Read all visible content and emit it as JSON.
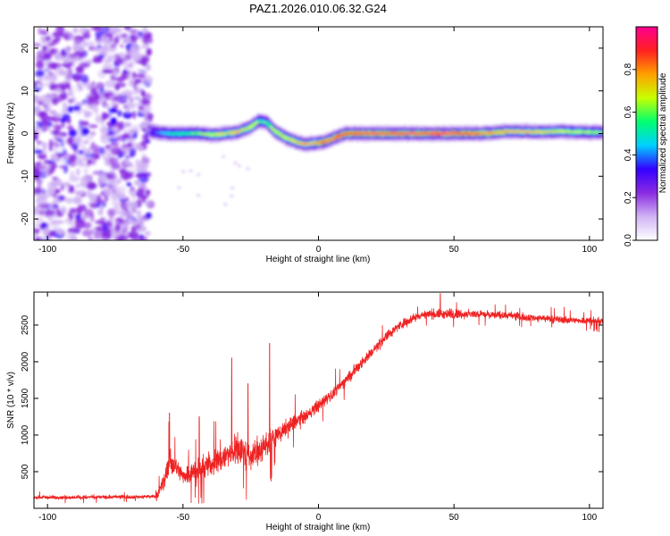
{
  "title": "PAZ1.2026.010.06.32.G24",
  "chart_data": [
    {
      "type": "heatmap",
      "xlabel": "Height of straight line (km)",
      "ylabel": "Frequency (Hz)",
      "xlim": [
        -105,
        105
      ],
      "ylim": [
        -25,
        25
      ],
      "xticks": [
        -100,
        -50,
        0,
        50,
        100
      ],
      "yticks": [
        -20,
        -10,
        0,
        10,
        20
      ],
      "colorbar": {
        "label": "Normalized spectral amplitude",
        "range": [
          0.0,
          1.0
        ],
        "ticks": [
          "0.0",
          "0.2",
          "0.4",
          "0.6",
          "0.8"
        ],
        "colors": [
          "#ffffff",
          "#d0b4f4",
          "#8a2be2",
          "#3300ff",
          "#00d0ff",
          "#00ff70",
          "#c8ff00",
          "#ffa000",
          "#ff2020",
          "#ff0090"
        ]
      },
      "ridge": {
        "x": [
          -62,
          -55,
          -45,
          -38,
          -30,
          -25,
          -22,
          -19,
          -16,
          -12,
          -8,
          -5,
          -2,
          2,
          6,
          10,
          20,
          30,
          40,
          50,
          60,
          70,
          80,
          90,
          100,
          105
        ],
        "frequency": [
          0.5,
          0,
          0,
          -0.3,
          0.3,
          1.5,
          3,
          2.5,
          0.5,
          -1,
          -2,
          -2.5,
          -2.3,
          -2,
          -1,
          0,
          0,
          0,
          0,
          0,
          0,
          0.5,
          0.4,
          0.5,
          0.3,
          0.3
        ],
        "amplitude": [
          0.3,
          0.5,
          0.6,
          0.7,
          0.75,
          0.7,
          0.6,
          0.55,
          0.65,
          0.7,
          0.75,
          0.8,
          0.8,
          0.85,
          0.85,
          0.9,
          0.95,
          0.95,
          0.95,
          0.95,
          0.85,
          0.8,
          0.75,
          0.7,
          0.65,
          0.6
        ]
      },
      "noise_region": {
        "x_range": [
          -105,
          -62
        ],
        "amplitude_range": [
          0.05,
          0.3
        ]
      }
    },
    {
      "type": "line",
      "xlabel": "Height of straight line (km)",
      "ylabel": "SNR (10 * v/v)",
      "xlim": [
        -105,
        105
      ],
      "ylim": [
        0,
        2950
      ],
      "xticks": [
        -100,
        -50,
        0,
        50,
        100
      ],
      "yticks": [
        500,
        1000,
        1500,
        2000,
        2500
      ],
      "color": "#ee2222",
      "envelope": {
        "x": [
          -105,
          -90,
          -75,
          -60,
          -57,
          -55,
          -50,
          -45,
          -40,
          -35,
          -30,
          -25,
          -20,
          -15,
          -10,
          -5,
          0,
          5,
          10,
          15,
          20,
          25,
          30,
          35,
          40,
          45,
          50,
          60,
          70,
          80,
          90,
          100,
          105
        ],
        "mean": [
          150,
          150,
          155,
          160,
          350,
          650,
          450,
          500,
          600,
          700,
          800,
          700,
          850,
          1000,
          1150,
          1250,
          1400,
          1550,
          1750,
          1950,
          2150,
          2350,
          2500,
          2600,
          2650,
          2650,
          2650,
          2650,
          2630,
          2600,
          2570,
          2560,
          2550
        ],
        "spread": [
          70,
          70,
          70,
          70,
          350,
          420,
          350,
          400,
          450,
          550,
          600,
          550,
          600,
          350,
          300,
          250,
          250,
          250,
          220,
          220,
          200,
          200,
          180,
          170,
          170,
          200,
          170,
          150,
          140,
          140,
          130,
          130,
          130
        ]
      },
      "spikes": [
        {
          "x": -55,
          "y": 1300
        },
        {
          "x": -32,
          "y": 2050
        },
        {
          "x": -18,
          "y": 2250
        },
        {
          "x": -26,
          "y": 1700
        },
        {
          "x": 45,
          "y": 2930
        },
        {
          "x": -44,
          "y": 1250
        }
      ]
    }
  ]
}
